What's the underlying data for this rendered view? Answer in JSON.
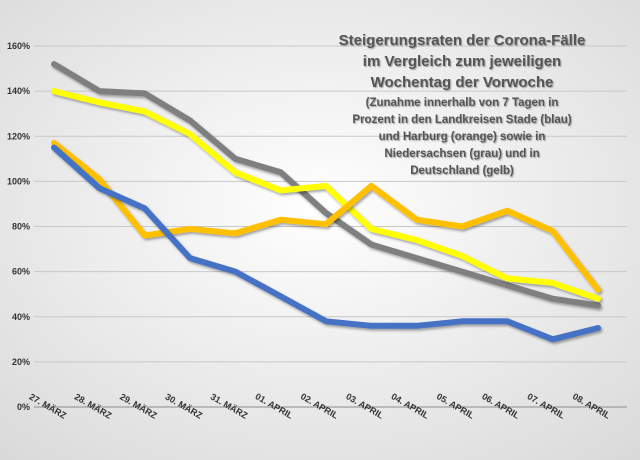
{
  "chart_data": {
    "type": "line",
    "title": "Steigerungsraten der Corona-Fälle",
    "title_lines": [
      "Steigerungsraten der Corona-Fälle",
      "im Vergleich zum jeweiligen",
      "Wochentag der Vorwoche"
    ],
    "subtitle_lines": [
      "(Zunahme innerhalb von 7 Tagen in",
      "Prozent in den Landkreisen Stade (blau)",
      "und Harburg (orange) sowie in",
      "Niedersachsen (grau) und in",
      "Deutschland (gelb)"
    ],
    "xlabel": "",
    "ylabel": "",
    "ylim": [
      0,
      160
    ],
    "yticks": [
      "0%",
      "20%",
      "40%",
      "60%",
      "80%",
      "100%",
      "120%",
      "140%",
      "160%"
    ],
    "ytick_values": [
      0,
      20,
      40,
      60,
      80,
      100,
      120,
      140,
      160
    ],
    "grid": true,
    "categories": [
      "27. MÄRZ",
      "28. MÄRZ",
      "29. MÄRZ",
      "30. MÄRZ",
      "31. MÄRZ",
      "01. APRIL",
      "02. APRIL",
      "03. APRIL",
      "04. APRIL",
      "05. APRIL",
      "06. APRIL",
      "07. APRIL",
      "08. APRIL"
    ],
    "series": [
      {
        "name": "Niedersachsen (grau)",
        "color": "#7f7f7f",
        "values": [
          152,
          140,
          139,
          127,
          110,
          104,
          86,
          72,
          66,
          60,
          54,
          48,
          45
        ]
      },
      {
        "name": "Deutschland (gelb)",
        "color": "#ffff00",
        "values": [
          140,
          135,
          131,
          121,
          104,
          96,
          98,
          79,
          74,
          67,
          57,
          55,
          48
        ]
      },
      {
        "name": "Harburg (orange)",
        "color": "#ffc000",
        "values": [
          117,
          101,
          76,
          79,
          77,
          83,
          81,
          98,
          83,
          80,
          87,
          78,
          52
        ]
      },
      {
        "name": "Stade (blau)",
        "color": "#4472c4",
        "values": [
          115,
          97,
          88,
          66,
          60,
          49,
          38,
          36,
          36,
          38,
          38,
          30,
          35
        ]
      }
    ]
  }
}
